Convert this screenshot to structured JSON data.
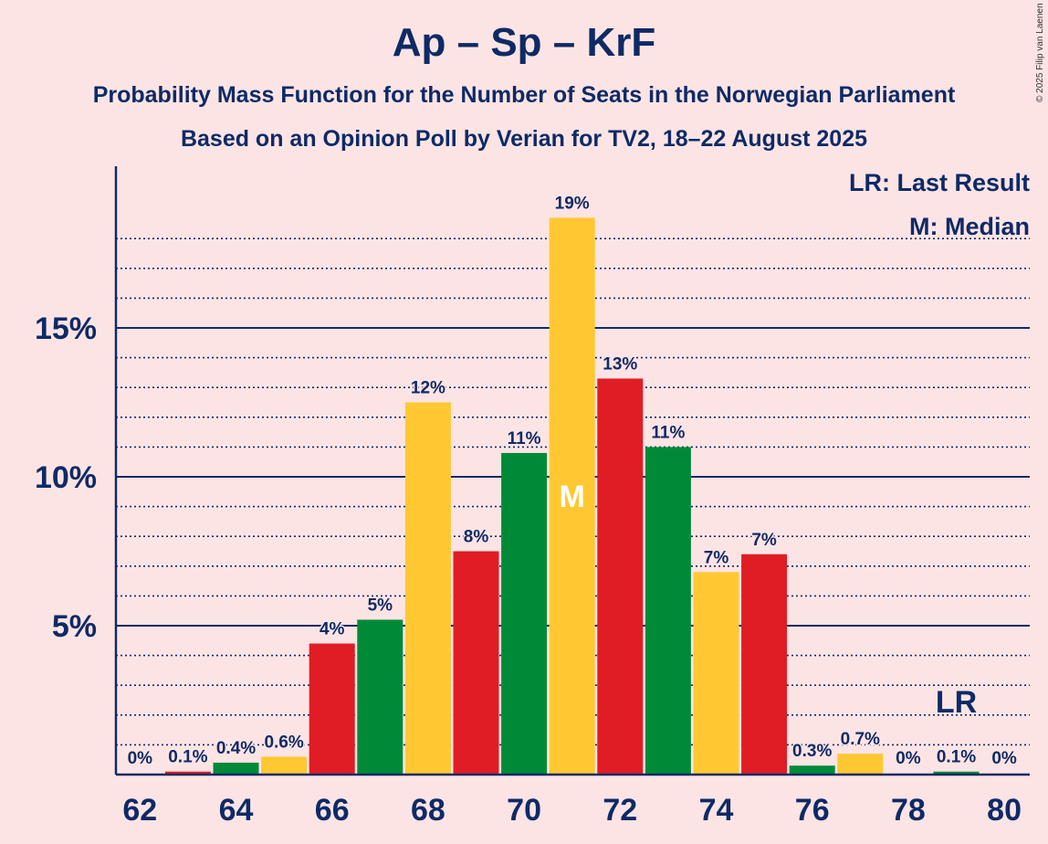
{
  "title": "Ap – Sp – KrF",
  "subtitle": "Probability Mass Function for the Number of Seats in the Norwegian Parliament",
  "subtitle2": "Based on an Opinion Poll by Verian for TV2, 18–22 August 2025",
  "copyright": "© 2025 Filip van Laenen",
  "legend": {
    "last_result": "LR: Last Result",
    "median": "M: Median"
  },
  "colors": {
    "background": "#fde4e4",
    "text": "#0e2a66",
    "red": "#e01c24",
    "green": "#008a37",
    "yellow": "#ffc832"
  },
  "chart_data": {
    "type": "bar",
    "categories": [
      62,
      63,
      64,
      65,
      66,
      67,
      68,
      69,
      70,
      71,
      72,
      73,
      74,
      75,
      76,
      77,
      78,
      79,
      80
    ],
    "values": [
      0,
      0.1,
      0.4,
      0.6,
      4.4,
      5.2,
      12.5,
      7.5,
      10.8,
      18.7,
      13.3,
      11.0,
      6.8,
      7.4,
      0.3,
      0.7,
      0,
      0.1,
      0
    ],
    "labels": [
      "0%",
      "0.1%",
      "0.4%",
      "0.6%",
      "4%",
      "5%",
      "12%",
      "8%",
      "11%",
      "19%",
      "13%",
      "11%",
      "7%",
      "7%",
      "0.3%",
      "0.7%",
      "0%",
      "0.1%",
      "0%"
    ],
    "colors": [
      "red",
      "red",
      "green",
      "yellow",
      "red",
      "green",
      "yellow",
      "red",
      "green",
      "yellow",
      "red",
      "green",
      "yellow",
      "red",
      "green",
      "yellow",
      "red",
      "green",
      "yellow"
    ],
    "x_ticks": [
      "62",
      "64",
      "66",
      "68",
      "70",
      "72",
      "74",
      "76",
      "78",
      "80"
    ],
    "y_ticks": [
      "5%",
      "10%",
      "15%"
    ],
    "ylim": [
      0,
      20
    ],
    "median_seat": 71,
    "median_label": "M",
    "last_result_seat": 79,
    "last_result_label": "LR"
  }
}
